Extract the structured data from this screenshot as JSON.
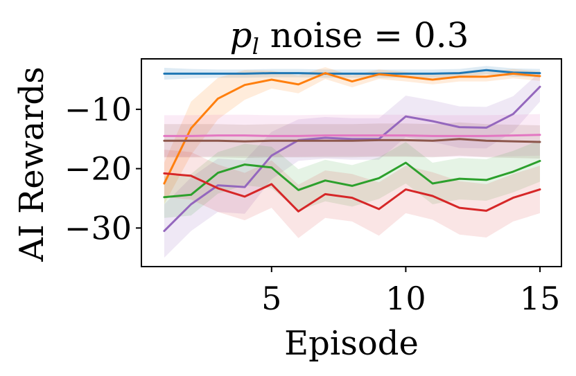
{
  "chart_data": {
    "type": "line",
    "title": "",
    "title_parts": {
      "var": "p",
      "sub": "l",
      "rest": " noise = 0.3"
    },
    "xlabel": "Episode",
    "ylabel": "AI Rewards",
    "xlim": [
      0.15,
      15.8
    ],
    "ylim": [
      -36.5,
      -1.5
    ],
    "xticks": [
      5,
      10,
      15
    ],
    "yticks": [
      -10,
      -20,
      -30
    ],
    "ytick_labels": [
      "−10",
      "−20",
      "−30"
    ],
    "xtick_labels": [
      "5",
      "10",
      "15"
    ],
    "grid": false,
    "legend": "none",
    "x": [
      1,
      2,
      3,
      4,
      5,
      6,
      7,
      8,
      9,
      10,
      11,
      12,
      13,
      14,
      15
    ],
    "series": [
      {
        "color": "#1f77b4",
        "band_opacity": 0.15,
        "values": [
          -4.0,
          -4.0,
          -4.0,
          -4.0,
          -3.9,
          -3.9,
          -4.0,
          -4.0,
          -4.0,
          -4.0,
          -4.0,
          -3.9,
          -3.4,
          -3.8,
          -3.9
        ],
        "band": [
          1.0,
          0.8,
          0.7,
          0.7,
          0.7,
          0.7,
          0.7,
          0.7,
          0.7,
          0.7,
          0.7,
          0.7,
          0.7,
          0.7,
          0.7
        ]
      },
      {
        "color": "#ff7f0e",
        "band_opacity": 0.15,
        "values": [
          -22.5,
          -13.2,
          -8.2,
          -5.9,
          -5.0,
          -5.8,
          -3.9,
          -5.3,
          -4.1,
          -4.5,
          -5.0,
          -4.5,
          -4.5,
          -4.0,
          -4.4
        ],
        "band": [
          3.5,
          4.5,
          3.5,
          2.5,
          1.5,
          1.5,
          1.0,
          1.0,
          0.8,
          0.8,
          0.8,
          0.8,
          0.8,
          0.8,
          0.8
        ]
      },
      {
        "color": "#9467bd",
        "band_opacity": 0.15,
        "values": [
          -30.5,
          -26.0,
          -22.8,
          -23.1,
          -17.8,
          -15.2,
          -14.8,
          -15.0,
          -15.0,
          -11.2,
          -12.0,
          -13.0,
          -13.1,
          -10.8,
          -6.2
        ],
        "band": [
          4.5,
          4.5,
          4.5,
          4.5,
          4.0,
          3.5,
          3.5,
          3.5,
          3.5,
          3.5,
          3.5,
          3.5,
          3.5,
          3.0,
          2.5
        ]
      },
      {
        "color": "#e377c2",
        "band_opacity": 0.15,
        "values": [
          -14.5,
          -14.5,
          -14.4,
          -14.4,
          -14.5,
          -14.5,
          -14.4,
          -14.4,
          -14.4,
          -14.4,
          -14.5,
          -14.5,
          -14.5,
          -14.4,
          -14.3
        ],
        "band": [
          3.5,
          3.5,
          3.5,
          3.5,
          3.5,
          3.5,
          3.5,
          3.5,
          3.5,
          3.5,
          3.5,
          3.5,
          3.5,
          3.5,
          3.5
        ]
      },
      {
        "color": "#8c564b",
        "band_opacity": 0.15,
        "values": [
          -15.3,
          -15.3,
          -15.3,
          -15.4,
          -15.3,
          -15.3,
          -15.3,
          -15.3,
          -15.2,
          -15.2,
          -15.3,
          -15.0,
          -15.3,
          -15.4,
          -15.5
        ],
        "band": [
          2.8,
          2.8,
          2.8,
          2.8,
          2.8,
          2.8,
          2.8,
          2.8,
          2.8,
          2.8,
          2.8,
          2.8,
          2.8,
          2.8,
          2.8
        ]
      },
      {
        "color": "#2ca02c",
        "band_opacity": 0.12,
        "values": [
          -24.8,
          -24.4,
          -20.7,
          -19.3,
          -19.8,
          -23.6,
          -22.0,
          -22.9,
          -21.6,
          -19.0,
          -22.5,
          -21.7,
          -21.9,
          -20.5,
          -18.7
        ],
        "band": [
          3.5,
          3.5,
          3.5,
          3.5,
          3.5,
          3.5,
          3.5,
          3.5,
          3.5,
          3.5,
          3.5,
          3.5,
          3.5,
          3.5,
          3.5
        ]
      },
      {
        "color": "#d62728",
        "band_opacity": 0.12,
        "values": [
          -20.8,
          -21.2,
          -23.3,
          -24.7,
          -22.6,
          -27.2,
          -24.3,
          -24.9,
          -26.8,
          -23.5,
          -24.6,
          -26.6,
          -27.1,
          -24.9,
          -23.5
        ],
        "band": [
          4.0,
          4.0,
          4.0,
          4.0,
          4.0,
          4.5,
          4.0,
          4.0,
          4.5,
          4.0,
          4.0,
          4.5,
          4.5,
          4.0,
          4.0
        ]
      }
    ]
  }
}
